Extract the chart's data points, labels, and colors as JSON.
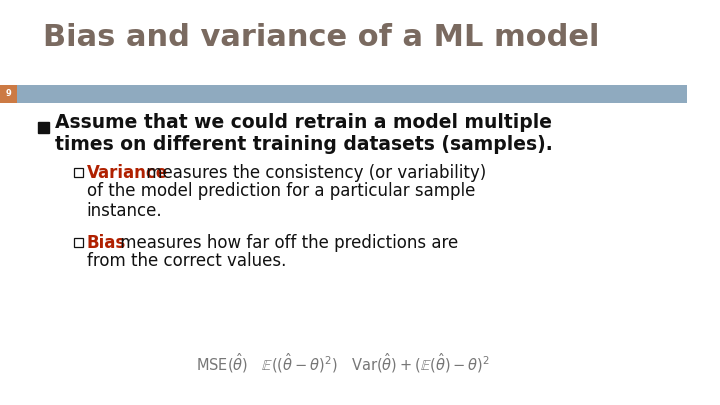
{
  "title": "Bias and variance of a ML model",
  "title_color": "#7a6a60",
  "title_fontsize": 22,
  "slide_number": "9",
  "header_bar_color": "#8faabf",
  "header_number_bg": "#cc7a44",
  "background_color": "#ffffff",
  "bullet_color": "#111111",
  "variance_color": "#b02000",
  "bias_color": "#b02000",
  "body_fontsize": 13.5,
  "sub_fontsize": 12.0,
  "formula_fontsize": 10.5,
  "main_bullet_line1": "Assume that we could retrain a model multiple",
  "main_bullet_line2": "times on different training datasets (samples).",
  "variance_label": "Variance",
  "variance_rest_line1": " measures the consistency (or variability)",
  "variance_rest_line2": "of the model prediction for a particular sample",
  "variance_rest_line3": "instance.",
  "bias_label": "Bias",
  "bias_rest_line1": " measures how far off the predictions are",
  "bias_rest_line2": "from the correct values.",
  "formula": "$\\mathrm{MSE}(\\hat{\\theta})\\quad\\mathbb{E}((\\hat{\\theta}-\\theta)^2)\\quad\\mathrm{Var}(\\hat{\\theta})+(\\mathbb{E}(\\hat{\\theta})-\\theta)^2$"
}
